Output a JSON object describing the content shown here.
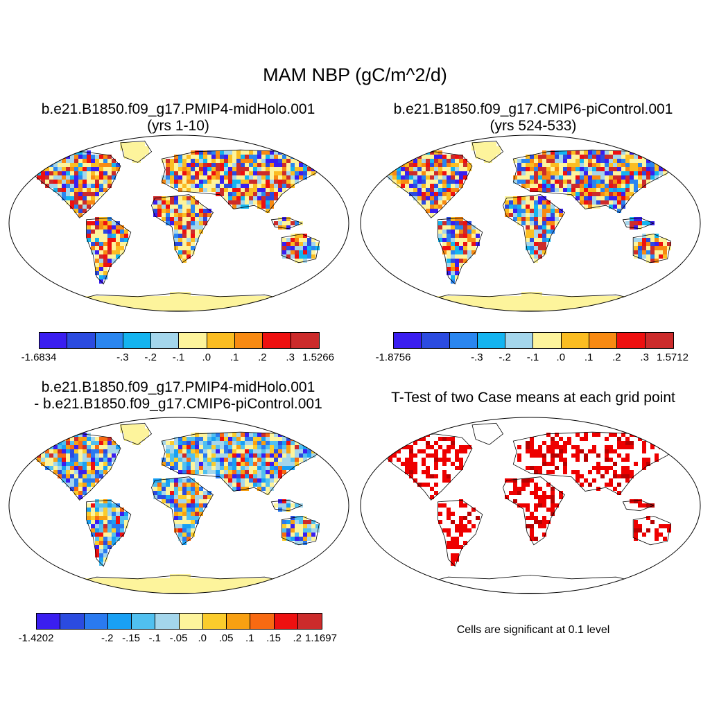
{
  "title": "MAM NBP (gC/m^2/d)",
  "panels": [
    {
      "title_line1": "b.e21.B1850.f09_g17.PMIP4-midHolo.001",
      "title_line2": "(yrs 1-10)",
      "colorbar_labels": [
        "-1.6834",
        "-.3",
        "-.2",
        "-.1",
        ".0",
        ".1",
        ".2",
        ".3",
        "1.5266"
      ],
      "colorbar_colors": [
        "#3a1ef0",
        "#2b4be0",
        "#2a86f0",
        "#14b4f0",
        "#a4d6ec",
        "#fdf49c",
        "#fbbd22",
        "#f88a12",
        "#ee1010",
        "#cc2b2b"
      ]
    },
    {
      "title_line1": "b.e21.B1850.f09_g17.CMIP6-piControl.001",
      "title_line2": "(yrs 524-533)",
      "colorbar_labels": [
        "-1.8756",
        "-.3",
        "-.2",
        "-.1",
        ".0",
        ".1",
        ".2",
        ".3",
        "1.5712"
      ],
      "colorbar_colors": [
        "#3a1ef0",
        "#2b4be0",
        "#2a86f0",
        "#14b4f0",
        "#a4d6ec",
        "#fdf49c",
        "#fbbd22",
        "#f88a12",
        "#ee1010",
        "#cc2b2b"
      ]
    },
    {
      "title_line1": "b.e21.B1850.f09_g17.PMIP4-midHolo.001",
      "title_line2": "- b.e21.B1850.f09_g17.CMIP6-piControl.001",
      "colorbar_labels": [
        "-1.4202",
        "-.2",
        "-.15",
        "-.1",
        "-.05",
        ".0",
        ".05",
        ".1",
        ".15",
        ".2",
        "1.1697"
      ],
      "colorbar_colors": [
        "#3a1ef0",
        "#2b4be0",
        "#2a7af0",
        "#19a0f4",
        "#50c0f0",
        "#a4d6ec",
        "#fdf49c",
        "#fbcc2c",
        "#f8a012",
        "#f86a12",
        "#ee1010",
        "#cc2b2b"
      ]
    },
    {
      "title_line1": "T-Test of two Case means at each grid point",
      "note": "Cells are significant at 0.1 level"
    }
  ]
}
